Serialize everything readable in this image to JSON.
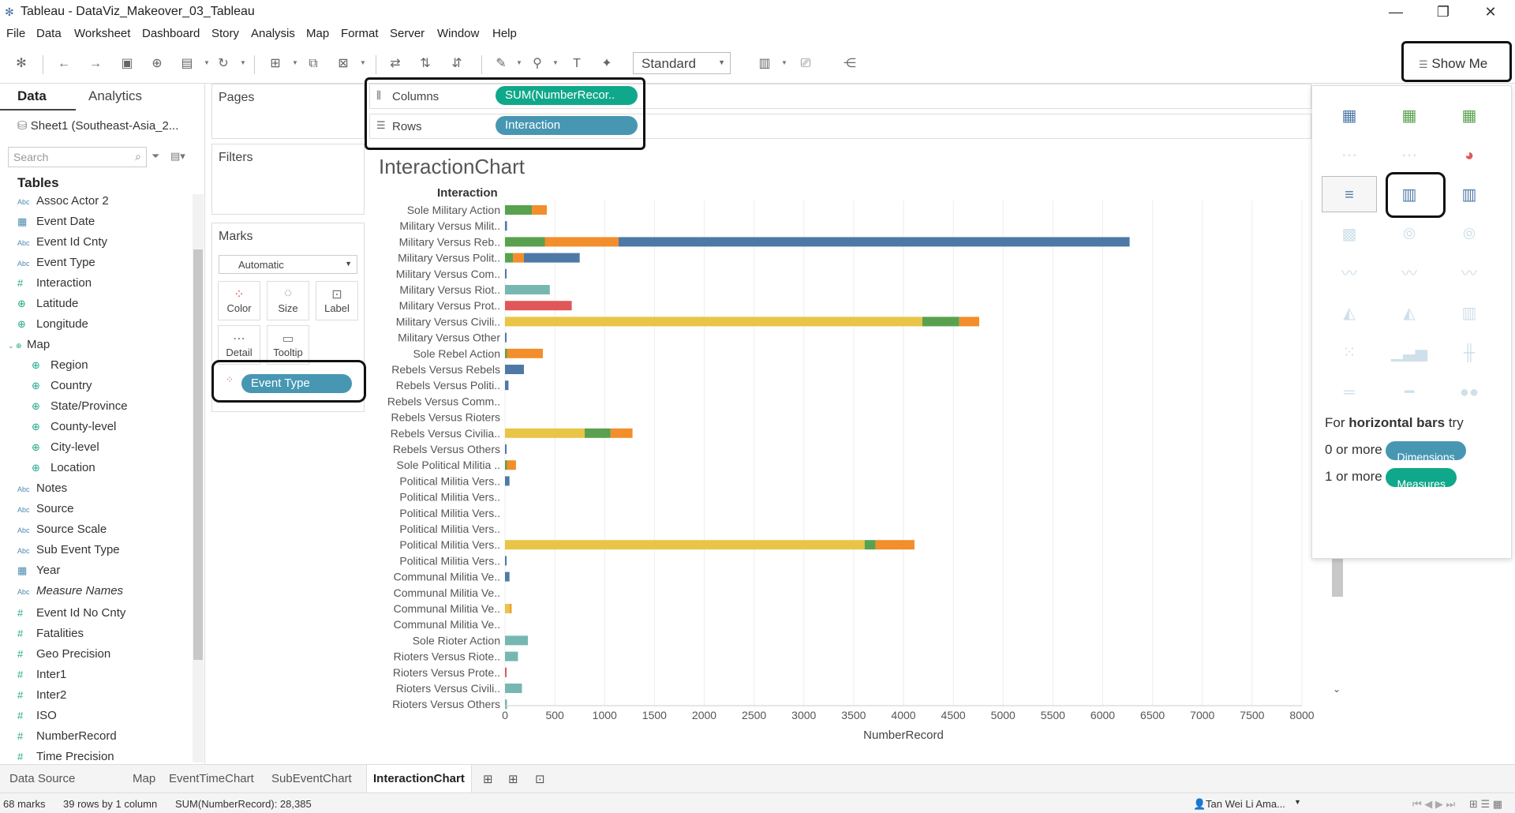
{
  "window": {
    "title": "Tableau - DataViz_Makeover_03_Tableau",
    "minimize": "—",
    "restore": "❐",
    "close": "✕"
  },
  "menu": [
    "File",
    "Data",
    "Worksheet",
    "Dashboard",
    "Story",
    "Analysis",
    "Map",
    "Format",
    "Server",
    "Window",
    "Help"
  ],
  "toolbar": {
    "fit_option": "Standard",
    "show_me_label": "Show Me"
  },
  "data_pane": {
    "tab_data": "Data",
    "tab_analytics": "Analytics",
    "datasource": "Sheet1 (Southeast-Asia_2...",
    "search_placeholder": "Search",
    "tables_heading": "Tables",
    "fields": [
      {
        "type": "Abc",
        "name": "Assoc Actor 2"
      },
      {
        "type": "date",
        "name": "Event Date"
      },
      {
        "type": "Abc",
        "name": "Event Id Cnty"
      },
      {
        "type": "Abc",
        "name": "Event Type"
      },
      {
        "type": "#",
        "name": "Interaction"
      },
      {
        "type": "geo",
        "name": "Latitude"
      },
      {
        "type": "geo",
        "name": "Longitude"
      },
      {
        "type": "folder",
        "name": "Map"
      },
      {
        "type": "geo",
        "name": "Region",
        "child": true
      },
      {
        "type": "geo",
        "name": "Country",
        "child": true
      },
      {
        "type": "geo",
        "name": "State/Province",
        "child": true
      },
      {
        "type": "geo",
        "name": "County-level",
        "child": true
      },
      {
        "type": "geo",
        "name": "City-level",
        "child": true
      },
      {
        "type": "geo",
        "name": "Location",
        "child": true
      },
      {
        "type": "Abc",
        "name": "Notes"
      },
      {
        "type": "Abc",
        "name": "Source"
      },
      {
        "type": "Abc",
        "name": "Source Scale"
      },
      {
        "type": "Abc",
        "name": "Sub Event Type"
      },
      {
        "type": "date",
        "name": "Year"
      },
      {
        "type": "Abc",
        "name": "Measure Names"
      },
      {
        "type": "#",
        "name": "Event Id No Cnty"
      },
      {
        "type": "#",
        "name": "Fatalities"
      },
      {
        "type": "#",
        "name": "Geo Precision"
      },
      {
        "type": "#",
        "name": "Inter1"
      },
      {
        "type": "#",
        "name": "Inter2"
      },
      {
        "type": "#",
        "name": "ISO"
      },
      {
        "type": "#",
        "name": "NumberRecord"
      },
      {
        "type": "#",
        "name": "Time Precision"
      }
    ]
  },
  "shelves": {
    "pages": "Pages",
    "filters": "Filters",
    "marks": "Marks",
    "mark_type": "Automatic",
    "columns_label": "Columns",
    "columns_pill": "SUM(NumberRecor..",
    "rows_label": "Rows",
    "rows_pill": "Interaction",
    "mark_buttons": [
      "Color",
      "Size",
      "Label",
      "Detail",
      "Tooltip"
    ],
    "color_pill": "Event Type"
  },
  "sheet": {
    "title": "InteractionChart",
    "row_header": "Interaction"
  },
  "chart_data": {
    "type": "bar",
    "orientation": "horizontal",
    "stacked": true,
    "title": "InteractionChart",
    "xlabel": "NumberRecord",
    "ylabel": "Interaction",
    "xlim": [
      0,
      8000
    ],
    "xticks": [
      0,
      500,
      1000,
      1500,
      2000,
      2500,
      3000,
      3500,
      4000,
      4500,
      5000,
      5500,
      6000,
      6500,
      7000,
      7500,
      8000
    ],
    "grid": true,
    "colors": {
      "yellow": "#e8c547",
      "green": "#59a14f",
      "orange": "#f28e2b",
      "blue": "#4e79a7",
      "teal": "#76b7b2",
      "red": "#e15759"
    },
    "categories": [
      "Sole Military Action",
      "Military Versus Milit..",
      "Military Versus Reb..",
      "Military Versus Polit..",
      "Military Versus Com..",
      "Military Versus Riot..",
      "Military Versus Prot..",
      "Military Versus Civili..",
      "Military Versus Other",
      "Sole Rebel Action",
      "Rebels Versus Rebels",
      "Rebels Versus Politi..",
      "Rebels Versus Comm..",
      "Rebels Versus Rioters",
      "Rebels Versus Civilia..",
      "Rebels Versus Others",
      "Sole Political Militia ..",
      "Political Militia Vers..",
      "Political Militia Vers..",
      "Political Militia Vers..",
      "Political Militia Vers..",
      "Political Militia Vers..",
      "Political Militia Vers..",
      "Communal Militia Ve..",
      "Communal Militia Ve..",
      "Communal Militia Ve..",
      "Communal Militia Ve..",
      "Sole Rioter Action",
      "Rioters Versus Riote..",
      "Rioters Versus Prote..",
      "Rioters Versus Civili..",
      "Rioters Versus Others"
    ],
    "stacks": [
      [
        {
          "c": "green",
          "v": 270
        },
        {
          "c": "orange",
          "v": 150
        }
      ],
      [
        {
          "c": "blue",
          "v": 20
        }
      ],
      [
        {
          "c": "green",
          "v": 400
        },
        {
          "c": "orange",
          "v": 740
        },
        {
          "c": "blue",
          "v": 5130
        }
      ],
      [
        {
          "c": "green",
          "v": 80
        },
        {
          "c": "orange",
          "v": 110
        },
        {
          "c": "blue",
          "v": 560
        }
      ],
      [
        {
          "c": "blue",
          "v": 10
        }
      ],
      [
        {
          "c": "teal",
          "v": 450
        }
      ],
      [
        {
          "c": "red",
          "v": 670
        }
      ],
      [
        {
          "c": "yellow",
          "v": 4190
        },
        {
          "c": "green",
          "v": 370
        },
        {
          "c": "orange",
          "v": 200
        }
      ],
      [
        {
          "c": "blue",
          "v": 5
        }
      ],
      [
        {
          "c": "green",
          "v": 20
        },
        {
          "c": "orange",
          "v": 360
        }
      ],
      [
        {
          "c": "blue",
          "v": 190
        }
      ],
      [
        {
          "c": "blue",
          "v": 35
        }
      ],
      [
        {
          "c": "blue",
          "v": 0
        }
      ],
      [
        {
          "c": "blue",
          "v": 0
        }
      ],
      [
        {
          "c": "yellow",
          "v": 800
        },
        {
          "c": "green",
          "v": 260
        },
        {
          "c": "orange",
          "v": 220
        }
      ],
      [
        {
          "c": "blue",
          "v": 15
        }
      ],
      [
        {
          "c": "green",
          "v": 20
        },
        {
          "c": "orange",
          "v": 90
        }
      ],
      [
        {
          "c": "blue",
          "v": 45
        }
      ],
      [
        {
          "c": "blue",
          "v": 0
        }
      ],
      [
        {
          "c": "blue",
          "v": 0
        }
      ],
      [
        {
          "c": "blue",
          "v": 0
        }
      ],
      [
        {
          "c": "yellow",
          "v": 3610
        },
        {
          "c": "green",
          "v": 110
        },
        {
          "c": "orange",
          "v": 390
        }
      ],
      [
        {
          "c": "blue",
          "v": 10
        }
      ],
      [
        {
          "c": "blue",
          "v": 45
        }
      ],
      [
        {
          "c": "blue",
          "v": 0
        }
      ],
      [
        {
          "c": "yellow",
          "v": 50
        },
        {
          "c": "orange",
          "v": 10
        }
      ],
      [
        {
          "c": "blue",
          "v": 0
        }
      ],
      [
        {
          "c": "teal",
          "v": 230
        }
      ],
      [
        {
          "c": "teal",
          "v": 130
        }
      ],
      [
        {
          "c": "red",
          "v": 15
        }
      ],
      [
        {
          "c": "teal",
          "v": 170
        }
      ],
      [
        {
          "c": "teal",
          "v": 20
        }
      ]
    ]
  },
  "show_me": {
    "for_prefix": "For ",
    "for_bold": "horizontal bars",
    "for_suffix": " try",
    "dim_prefix": "0 or more",
    "dim_pill": "Dimensions",
    "meas_prefix": "1 or more",
    "meas_pill": "Measures"
  },
  "sheet_tabs": [
    "Data Source",
    "Map",
    "EventTimeChart",
    "SubEventChart",
    "InteractionChart"
  ],
  "status": {
    "marks": "68 marks",
    "rows_cols": "39 rows by 1 column",
    "sum": "SUM(NumberRecord): 28,385",
    "user": "Tan Wei Li Ama..."
  }
}
